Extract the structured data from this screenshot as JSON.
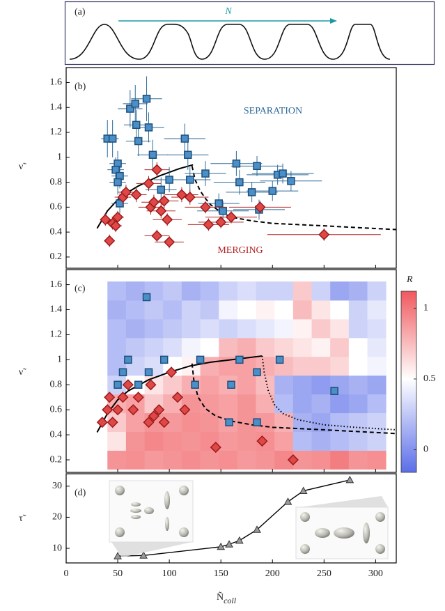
{
  "chart_data": [
    {
      "type": "schematic",
      "panel_label": "(a)",
      "arrow_label": "N"
    },
    {
      "type": "scatter",
      "panel_label": "(b)",
      "y_label": "ν̃",
      "xlim": [
        0,
        320
      ],
      "xticks": [
        0,
        50,
        100,
        150,
        200,
        250,
        300
      ],
      "ylim": [
        0.11,
        1.72
      ],
      "yticks": [
        0.2,
        0.4,
        0.6,
        0.8,
        1.0,
        1.2,
        1.4,
        1.6
      ],
      "annotations": [
        "SEPARATION",
        "MERGING"
      ],
      "series": [
        {
          "marker": "square",
          "color": "#4a8fc7",
          "edge": "#1f4f7a",
          "err_color": "#2d6a99",
          "x": [
            40,
            45,
            50,
            48,
            52,
            50,
            52,
            62,
            67,
            68,
            70,
            78,
            80,
            84,
            92,
            100,
            115,
            118,
            120,
            135,
            148,
            152,
            165,
            168,
            180,
            185,
            187,
            200,
            205,
            210,
            218
          ],
          "values": [
            1.15,
            1.15,
            0.95,
            0.9,
            0.85,
            0.8,
            0.63,
            1.39,
            1.43,
            1.26,
            1.13,
            1.47,
            1.24,
            1.02,
            0.74,
            0.82,
            1.15,
            1.02,
            0.82,
            0.87,
            0.63,
            0.57,
            0.95,
            0.8,
            0.72,
            0.93,
            0.58,
            0.73,
            0.86,
            0.87,
            0.81
          ],
          "xerr": [
            6,
            6,
            8,
            8,
            8,
            8,
            8,
            12,
            12,
            12,
            12,
            15,
            15,
            15,
            15,
            15,
            20,
            20,
            20,
            20,
            20,
            25,
            25,
            25,
            25,
            25,
            25,
            25,
            30,
            30,
            30
          ],
          "yerr": [
            0.15,
            0.15,
            0.1,
            0.1,
            0.1,
            0.1,
            0.08,
            0.15,
            0.15,
            0.12,
            0.12,
            0.18,
            0.12,
            0.12,
            0.1,
            0.1,
            0.12,
            0.12,
            0.1,
            0.1,
            0.08,
            0.08,
            0.1,
            0.1,
            0.08,
            0.08,
            0.08,
            0.08,
            0.08,
            0.08,
            0.08
          ]
        },
        {
          "marker": "diamond",
          "color": "#e04848",
          "edge": "#9b1a1a",
          "err_color": "#b22222",
          "x": [
            38,
            42,
            45,
            48,
            50,
            55,
            58,
            68,
            80,
            82,
            85,
            88,
            88,
            92,
            95,
            98,
            100,
            112,
            120,
            135,
            138,
            150,
            160,
            188,
            250
          ],
          "values": [
            0.5,
            0.33,
            0.47,
            0.45,
            0.52,
            0.68,
            0.72,
            0.7,
            0.79,
            0.6,
            0.64,
            0.9,
            0.37,
            0.57,
            0.65,
            0.5,
            0.32,
            0.7,
            0.68,
            0.6,
            0.46,
            0.48,
            0.52,
            0.6,
            0.38
          ],
          "xerr": [
            5,
            5,
            6,
            6,
            6,
            8,
            8,
            10,
            12,
            12,
            12,
            12,
            12,
            14,
            14,
            14,
            14,
            16,
            18,
            20,
            20,
            22,
            25,
            30,
            55
          ],
          "yerr": [
            0.05,
            0.05,
            0.05,
            0.05,
            0.05,
            0.06,
            0.06,
            0.06,
            0.06,
            0.06,
            0.06,
            0.06,
            0.05,
            0.06,
            0.06,
            0.05,
            0.05,
            0.06,
            0.06,
            0.05,
            0.05,
            0.05,
            0.05,
            0.05,
            0.05
          ]
        }
      ],
      "curves": [
        {
          "style": "solid",
          "x": [
            30,
            40,
            50,
            60,
            70,
            80,
            90,
            100,
            110,
            123
          ],
          "values": [
            0.43,
            0.57,
            0.66,
            0.72,
            0.77,
            0.81,
            0.85,
            0.88,
            0.91,
            0.94
          ]
        },
        {
          "style": "dashed",
          "x": [
            122,
            125,
            130,
            135,
            140,
            150,
            160,
            180,
            200,
            250,
            320
          ],
          "values": [
            0.93,
            0.82,
            0.73,
            0.67,
            0.62,
            0.56,
            0.52,
            0.49,
            0.47,
            0.45,
            0.42
          ]
        }
      ]
    },
    {
      "type": "heatmap",
      "panel_label": "(c)",
      "y_label": "ν̃",
      "xlim": [
        0,
        320
      ],
      "xticks": [
        0,
        50,
        100,
        150,
        200,
        250,
        300
      ],
      "ylim": [
        0.1,
        1.72
      ],
      "yticks": [
        0.2,
        0.4,
        0.6,
        0.8,
        1.0,
        1.2,
        1.4,
        1.6
      ],
      "colorbar": {
        "label": "R",
        "lim": [
          -0.16,
          1.12
        ],
        "ticks": [
          0,
          0.5,
          1
        ],
        "low": "#5b6ee8",
        "mid": "#ffffff",
        "high": "#f0595e"
      },
      "heatmap": {
        "x_edges": [
          40,
          58,
          76,
          94,
          112,
          130,
          148,
          166,
          184,
          202,
          220,
          238,
          256,
          274,
          292,
          310
        ],
        "y_edges": [
          0.125,
          0.275,
          0.425,
          0.575,
          0.725,
          0.875,
          1.025,
          1.175,
          1.325,
          1.475,
          1.625
        ],
        "values": [
          [
            0.9,
            0.92,
            0.88,
            0.9,
            0.93,
            0.9,
            0.92,
            0.88,
            0.9,
            0.95,
            0.9,
            0.92,
            0.98,
            0.9,
            0.92
          ],
          [
            0.6,
            0.9,
            0.95,
            0.92,
            0.9,
            0.93,
            0.88,
            0.9,
            0.92,
            0.85,
            0.2,
            0.15,
            0.2,
            0.25,
            0.3
          ],
          [
            0.7,
            0.85,
            0.9,
            0.88,
            0.92,
            0.9,
            0.85,
            0.9,
            0.88,
            0.8,
            0.15,
            0.1,
            0.2,
            0.25,
            0.3
          ],
          [
            0.8,
            0.85,
            0.7,
            0.8,
            0.9,
            0.88,
            0.85,
            0.9,
            0.8,
            0.2,
            0.1,
            0.15,
            0.05,
            0.1,
            0.2
          ],
          [
            0.3,
            0.5,
            0.6,
            0.7,
            0.8,
            0.85,
            0.8,
            0.85,
            0.75,
            0.15,
            0.1,
            0.05,
            0.1,
            0.15,
            0.1
          ],
          [
            0.2,
            0.3,
            0.35,
            0.5,
            0.55,
            0.8,
            0.85,
            0.85,
            0.8,
            0.75,
            0.7,
            0.7,
            0.65,
            0.5,
            0.45
          ],
          [
            0.2,
            0.25,
            0.3,
            0.35,
            0.45,
            0.5,
            0.75,
            0.8,
            0.7,
            0.65,
            0.6,
            0.55,
            0.7,
            0.5,
            0.4
          ],
          [
            0.2,
            0.15,
            0.2,
            0.25,
            0.3,
            0.35,
            0.3,
            0.35,
            0.4,
            0.45,
            0.55,
            0.7,
            0.6,
            0.3,
            0.35
          ],
          [
            0.15,
            0.2,
            0.25,
            0.2,
            0.3,
            0.25,
            0.45,
            0.5,
            0.55,
            0.5,
            0.75,
            0.6,
            0.5,
            0.3,
            0.4
          ],
          [
            0.2,
            0.15,
            0.2,
            0.25,
            0.15,
            0.2,
            0.3,
            0.35,
            0.3,
            0.3,
            0.7,
            0.3,
            0.1,
            0.15,
            0.3
          ]
        ]
      },
      "series": [
        {
          "marker": "square",
          "color": "#4a8fc7",
          "edge": "#1f4f7a",
          "x": [
            78,
            60,
            55,
            50,
            70,
            80,
            95,
            130,
            125,
            160,
            168,
            185,
            207,
            158,
            185,
            260
          ],
          "values": [
            1.5,
            1.0,
            0.9,
            0.8,
            0.8,
            0.9,
            1.0,
            1.0,
            0.8,
            0.8,
            1.0,
            0.9,
            1.0,
            0.5,
            0.5,
            0.75
          ]
        },
        {
          "marker": "diamond",
          "color": "#e04848",
          "edge": "#9b1a1a",
          "x": [
            35,
            40,
            42,
            45,
            50,
            55,
            60,
            65,
            70,
            80,
            82,
            85,
            90,
            95,
            102,
            108,
            115,
            145,
            190,
            220
          ],
          "values": [
            0.5,
            0.6,
            0.7,
            0.5,
            0.6,
            0.7,
            0.8,
            0.6,
            0.7,
            0.5,
            0.8,
            0.55,
            0.6,
            0.5,
            0.9,
            0.7,
            0.6,
            0.3,
            0.35,
            0.2
          ]
        }
      ],
      "curves": [
        {
          "style": "solid",
          "x": [
            30,
            40,
            50,
            60,
            80,
            100,
            120,
            140,
            160,
            190
          ],
          "values": [
            0.42,
            0.57,
            0.68,
            0.75,
            0.84,
            0.9,
            0.95,
            0.98,
            1.0,
            1.03
          ]
        },
        {
          "style": "dashed",
          "x": [
            122,
            124,
            128,
            135,
            145,
            160,
            180,
            200,
            250,
            320
          ],
          "values": [
            0.97,
            0.82,
            0.7,
            0.61,
            0.55,
            0.51,
            0.48,
            0.46,
            0.44,
            0.41
          ]
        },
        {
          "style": "dotted",
          "x": [
            190,
            192,
            196,
            202,
            210,
            225,
            250,
            280,
            320
          ],
          "values": [
            1.03,
            0.9,
            0.75,
            0.64,
            0.57,
            0.52,
            0.48,
            0.46,
            0.44
          ]
        }
      ]
    },
    {
      "type": "line",
      "panel_label": "(d)",
      "y_label": "τ̃",
      "x_label": "Ñ",
      "x_label_sub": "coll",
      "xlim": [
        0,
        320
      ],
      "xticks": [
        0,
        50,
        100,
        150,
        200,
        250,
        300
      ],
      "ylim": [
        5.3,
        34
      ],
      "yticks": [
        10,
        20,
        30
      ],
      "series": [
        {
          "marker": "triangle",
          "color": "#9a9a9a",
          "edge": "#333333",
          "x": [
            50,
            75,
            150,
            158,
            168,
            185,
            215,
            230,
            275
          ],
          "values": [
            7.5,
            7.7,
            10.5,
            11.3,
            12.5,
            16,
            25,
            28.5,
            32
          ]
        }
      ]
    }
  ]
}
